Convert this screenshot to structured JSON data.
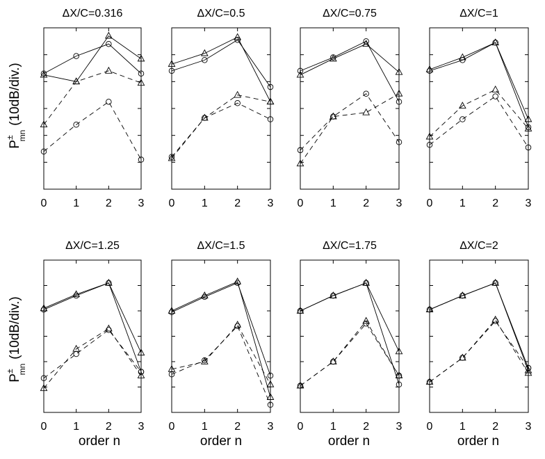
{
  "chart_data": {
    "type": "line",
    "ylabel_main": "P",
    "ylabel_sup": "±",
    "ylabel_sub": "mn",
    "ylabel_unit": "(10dB/div.)",
    "xlabel": "order n",
    "x": [
      0,
      1,
      2,
      3
    ],
    "x_tick_labels": [
      "0",
      "1",
      "2",
      "3"
    ],
    "xlim": [
      0,
      3
    ],
    "ylim": [
      0,
      6
    ],
    "y_tick_values": [
      1,
      2,
      3,
      4,
      5
    ],
    "y_unit": "divisions of 10 dB (relative, estimated)",
    "series_legend": [
      {
        "key": "circle-solid",
        "marker": "circle",
        "line": "solid"
      },
      {
        "key": "triangle-solid",
        "marker": "triangle",
        "line": "solid"
      },
      {
        "key": "circle-dashed",
        "marker": "circle",
        "line": "dashed"
      },
      {
        "key": "triangle-dashed",
        "marker": "triangle",
        "line": "dashed"
      }
    ],
    "panels": [
      {
        "title": "ΔX/C=0.316",
        "series": [
          {
            "name": "circle-solid",
            "values": [
              4.3,
              4.95,
              5.4,
              4.3
            ]
          },
          {
            "name": "triangle-solid",
            "values": [
              4.25,
              4.0,
              5.7,
              4.85
            ]
          },
          {
            "name": "circle-dashed",
            "values": [
              1.4,
              2.4,
              3.25,
              1.1
            ]
          },
          {
            "name": "triangle-dashed",
            "values": [
              2.4,
              4.0,
              4.4,
              3.95
            ]
          }
        ]
      },
      {
        "title": "ΔX/C=0.5",
        "series": [
          {
            "name": "circle-solid",
            "values": [
              4.4,
              4.8,
              5.55,
              3.8
            ]
          },
          {
            "name": "triangle-solid",
            "values": [
              4.65,
              5.05,
              5.65,
              3.25
            ]
          },
          {
            "name": "circle-dashed",
            "values": [
              1.2,
              2.65,
              3.2,
              2.6
            ]
          },
          {
            "name": "triangle-dashed",
            "values": [
              1.15,
              2.65,
              3.5,
              3.25
            ]
          }
        ]
      },
      {
        "title": "ΔX/C=0.75",
        "series": [
          {
            "name": "circle-solid",
            "values": [
              4.4,
              4.9,
              5.5,
              3.25
            ]
          },
          {
            "name": "triangle-solid",
            "values": [
              4.25,
              4.85,
              5.4,
              4.35
            ]
          },
          {
            "name": "circle-dashed",
            "values": [
              1.45,
              2.7,
              3.55,
              1.75
            ]
          },
          {
            "name": "triangle-dashed",
            "values": [
              0.95,
              2.7,
              2.85,
              3.55
            ]
          }
        ]
      },
      {
        "title": "ΔX/C=1",
        "series": [
          {
            "name": "circle-solid",
            "values": [
              4.4,
              4.8,
              5.45,
              2.3
            ]
          },
          {
            "name": "triangle-solid",
            "values": [
              4.45,
              4.9,
              5.45,
              2.6
            ]
          },
          {
            "name": "circle-dashed",
            "values": [
              1.65,
              2.6,
              3.45,
              1.55
            ]
          },
          {
            "name": "triangle-dashed",
            "values": [
              1.95,
              3.1,
              3.7,
              2.25
            ]
          }
        ]
      },
      {
        "title": "ΔX/C=1.25",
        "series": [
          {
            "name": "circle-solid",
            "values": [
              4.05,
              4.6,
              5.1,
              1.6
            ]
          },
          {
            "name": "triangle-solid",
            "values": [
              4.1,
              4.65,
              5.1,
              2.35
            ]
          },
          {
            "name": "circle-dashed",
            "values": [
              1.35,
              2.3,
              3.25,
              1.6
            ]
          },
          {
            "name": "triangle-dashed",
            "values": [
              0.95,
              2.5,
              3.3,
              1.45
            ]
          }
        ]
      },
      {
        "title": "ΔX/C=1.5",
        "series": [
          {
            "name": "circle-solid",
            "values": [
              3.95,
              4.55,
              5.1,
              1.45
            ]
          },
          {
            "name": "triangle-solid",
            "values": [
              4.0,
              4.6,
              5.15,
              0.6
            ]
          },
          {
            "name": "circle-dashed",
            "values": [
              1.5,
              2.05,
              3.4,
              0.3
            ]
          },
          {
            "name": "triangle-dashed",
            "values": [
              1.7,
              2.0,
              3.45,
              1.1
            ]
          }
        ]
      },
      {
        "title": "ΔX/C=1.75",
        "series": [
          {
            "name": "circle-solid",
            "values": [
              4.0,
              4.6,
              5.1,
              1.1
            ]
          },
          {
            "name": "triangle-solid",
            "values": [
              4.0,
              4.6,
              5.1,
              2.4
            ]
          },
          {
            "name": "circle-dashed",
            "values": [
              1.05,
              2.0,
              3.5,
              1.45
            ]
          },
          {
            "name": "triangle-dashed",
            "values": [
              1.05,
              2.0,
              3.6,
              1.45
            ]
          }
        ]
      },
      {
        "title": "ΔX/C=2",
        "series": [
          {
            "name": "circle-solid",
            "values": [
              4.05,
              4.6,
              5.1,
              1.75
            ]
          },
          {
            "name": "triangle-solid",
            "values": [
              4.05,
              4.6,
              5.1,
              1.65
            ]
          },
          {
            "name": "circle-dashed",
            "values": [
              1.2,
              2.15,
              3.6,
              1.75
            ]
          },
          {
            "name": "triangle-dashed",
            "values": [
              1.2,
              2.15,
              3.65,
              1.55
            ]
          }
        ]
      }
    ]
  }
}
